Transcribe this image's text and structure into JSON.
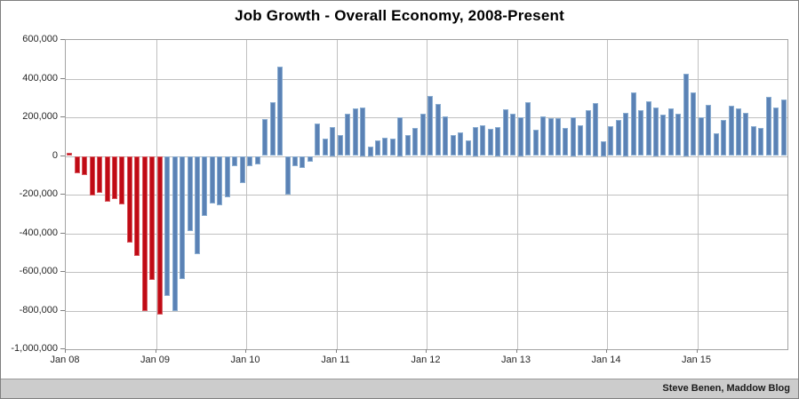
{
  "chart": {
    "title": "Job Growth - Overall Economy, 2008-Present",
    "credit": "Steve Benen, Maddow Blog"
  },
  "chart_data": {
    "type": "bar",
    "title": "Job Growth - Overall Economy, 2008-Present",
    "x_start": "Jan 2008",
    "x_end": "Dec 2015",
    "x_tick_labels": [
      "Jan 08",
      "Jan 09",
      "Jan 10",
      "Jan 11",
      "Jan 12",
      "Jan 13",
      "Jan 14",
      "Jan 15"
    ],
    "y_tick_labels": [
      "600,000",
      "400,000",
      "200,000",
      "0",
      "-200,000",
      "-400,000",
      "-600,000",
      "-800,000",
      "-1,000,000"
    ],
    "y_tick_values": [
      600000,
      400000,
      200000,
      0,
      -200000,
      -400000,
      -600000,
      -800000,
      -1000000
    ],
    "ylim": [
      -1000000,
      600000
    ],
    "grid": true,
    "legend": "none",
    "red_bar_count": 13,
    "colors": {
      "red_bar": "#c00b15",
      "red_bar_edge": "#d85b62",
      "blue_bar": "#5b82b5",
      "blue_bar_edge": "#8aadd1",
      "gridline": "#c0c0c0",
      "axis_text": "#262626"
    },
    "values": [
      15000,
      -90000,
      -100000,
      -205000,
      -190000,
      -235000,
      -225000,
      -250000,
      -450000,
      -515000,
      -800000,
      -640000,
      -820000,
      -725000,
      -800000,
      -635000,
      -390000,
      -510000,
      -310000,
      -245000,
      -255000,
      -215000,
      -55000,
      -140000,
      -55000,
      -45000,
      190000,
      280000,
      460000,
      -200000,
      -55000,
      -60000,
      -30000,
      170000,
      90000,
      150000,
      110000,
      220000,
      245000,
      250000,
      50000,
      80000,
      95000,
      90000,
      200000,
      110000,
      145000,
      220000,
      310000,
      270000,
      205000,
      110000,
      120000,
      80000,
      150000,
      160000,
      140000,
      150000,
      240000,
      220000,
      200000,
      280000,
      135000,
      205000,
      195000,
      195000,
      145000,
      200000,
      160000,
      235000,
      275000,
      75000,
      155000,
      185000,
      225000,
      330000,
      235000,
      285000,
      250000,
      215000,
      245000,
      220000,
      425000,
      330000,
      201000,
      266000,
      119000,
      187000,
      260000,
      245000,
      223000,
      153000,
      145000,
      307000,
      252000,
      292000
    ]
  }
}
